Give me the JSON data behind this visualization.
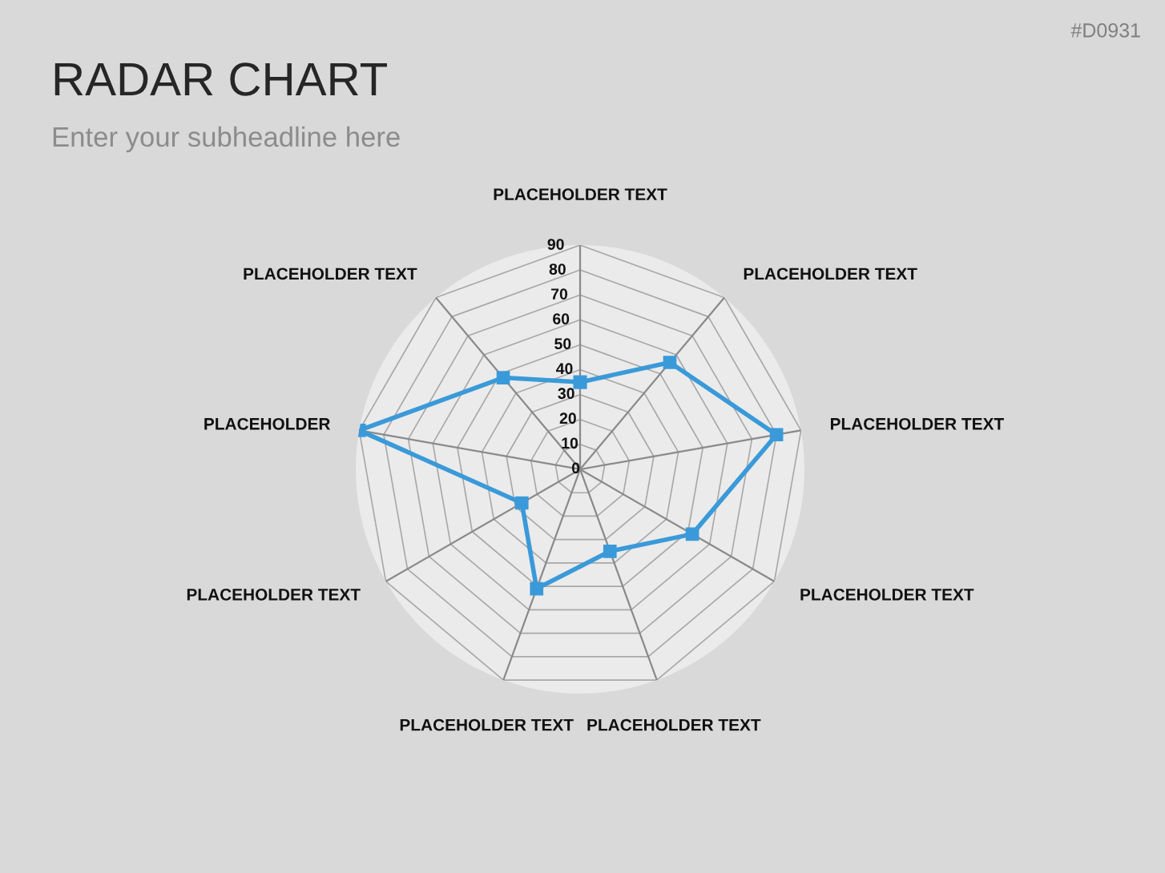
{
  "chart_data": {
    "type": "radar",
    "title": "RADAR CHART",
    "subtitle": "Enter your subheadline here",
    "annotations": [
      "#D0931"
    ],
    "categories": [
      "PLACEHOLDER TEXT",
      "PLACEHOLDER TEXT",
      "PLACEHOLDER TEXT",
      "PLACEHOLDER TEXT",
      "PLACEHOLDER TEXT",
      "PLACEHOLDER TEXT",
      "PLACEHOLDER TEXT",
      "PLACEHOLDER",
      "PLACEHOLDER TEXT"
    ],
    "series": [
      {
        "color": "#3a9ad9",
        "values": [
          35,
          56,
          80,
          52,
          35,
          51,
          27,
          90,
          48
        ]
      }
    ],
    "ylim": [
      0,
      90
    ],
    "yticks": [
      0,
      10,
      20,
      30,
      40,
      50,
      60,
      70,
      80,
      90
    ],
    "grid": true,
    "marker": "square",
    "line_style": "solid"
  }
}
